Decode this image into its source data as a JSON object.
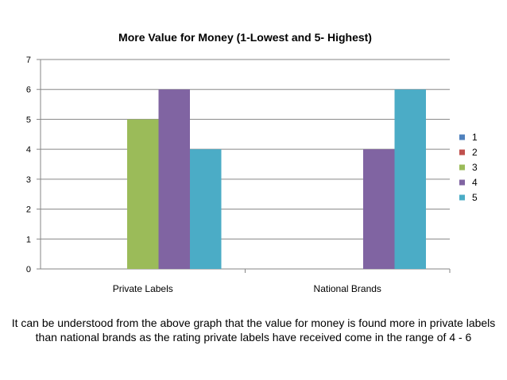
{
  "chart_data": {
    "type": "bar",
    "title": "More Value for Money (1-Lowest and 5- Highest)",
    "categories": [
      "Private Labels",
      "National Brands"
    ],
    "series": [
      {
        "name": "1",
        "values": [
          0,
          0
        ],
        "color": "#4f81bd"
      },
      {
        "name": "2",
        "values": [
          0,
          0
        ],
        "color": "#c0504d"
      },
      {
        "name": "3",
        "values": [
          5,
          0
        ],
        "color": "#9bbb59"
      },
      {
        "name": "4",
        "values": [
          6,
          4
        ],
        "color": "#8064a2"
      },
      {
        "name": "5",
        "values": [
          4,
          6
        ],
        "color": "#4bacc6"
      }
    ],
    "ylim": [
      0,
      7
    ],
    "yticks": [
      0,
      1,
      2,
      3,
      4,
      5,
      6,
      7
    ],
    "grid": true,
    "legend_position": "right"
  },
  "caption": "It can be understood from the above graph that the value for money is found more in private labels than national brands as the rating private labels have received come in the range of 4 - 6"
}
